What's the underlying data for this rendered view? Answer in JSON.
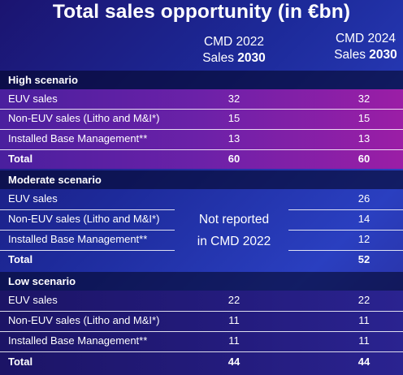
{
  "title": "Total sales opportunity (in €bn)",
  "columns": [
    {
      "line1": "CMD 2022",
      "line2_prefix": "Sales ",
      "line2_bold": "2030"
    },
    {
      "line1": "CMD 2024",
      "line2_prefix": "Sales ",
      "line2_bold": "2030"
    }
  ],
  "sections": [
    {
      "name": "High scenario",
      "rows": [
        {
          "label": "EUV sales",
          "cmd2022": "32",
          "cmd2024": "32"
        },
        {
          "label": "Non-EUV sales (Litho and M&I*)",
          "cmd2022": "15",
          "cmd2024": "15"
        },
        {
          "label": "Installed Base Management**",
          "cmd2022": "13",
          "cmd2024": "13"
        },
        {
          "label": "Total",
          "cmd2022": "60",
          "cmd2024": "60"
        }
      ]
    },
    {
      "name": "Moderate scenario",
      "rows": [
        {
          "label": "EUV sales",
          "cmd2022": "",
          "cmd2024": "26"
        },
        {
          "label": "Non-EUV sales (Litho and M&I*)",
          "cmd2022": "",
          "cmd2024": "14"
        },
        {
          "label": "Installed Base Management**",
          "cmd2022": "",
          "cmd2024": "12"
        },
        {
          "label": "Total",
          "cmd2022": "",
          "cmd2024": "52"
        }
      ],
      "not_reported_line1": "Not reported",
      "not_reported_line2": "in CMD 2022"
    },
    {
      "name": "Low scenario",
      "rows": [
        {
          "label": "EUV sales",
          "cmd2022": "22",
          "cmd2024": "22"
        },
        {
          "label": "Non-EUV sales (Litho and M&I*)",
          "cmd2022": "11",
          "cmd2024": "11"
        },
        {
          "label": "Installed Base Management**",
          "cmd2022": "11",
          "cmd2024": "11"
        },
        {
          "label": "Total",
          "cmd2022": "44",
          "cmd2024": "44"
        }
      ]
    }
  ]
}
